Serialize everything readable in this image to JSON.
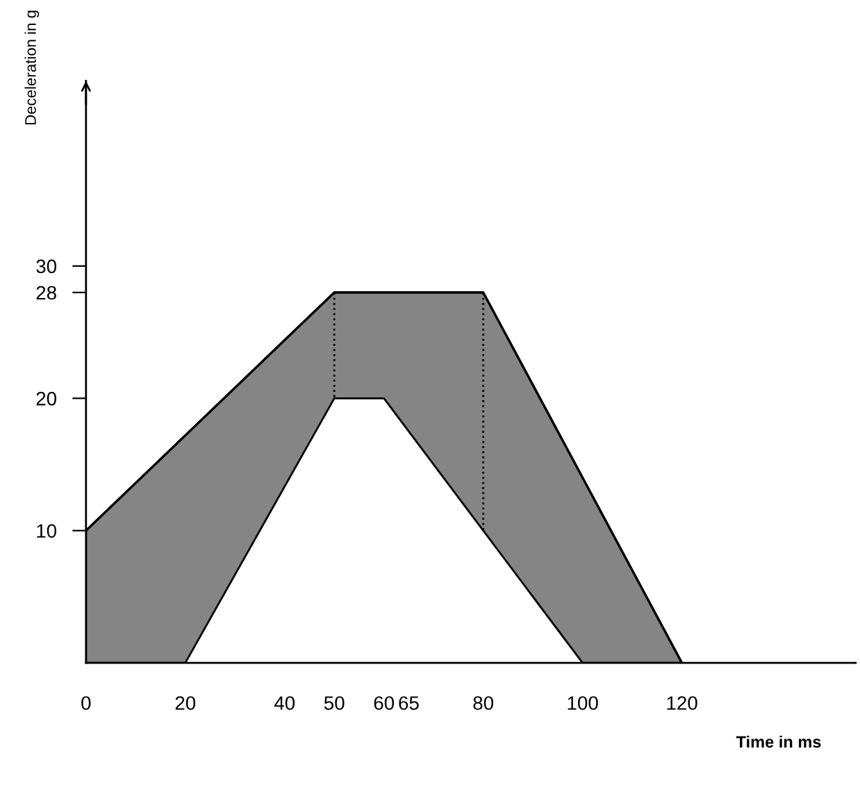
{
  "chart_data": {
    "type": "line",
    "xlabel": "Time in ms",
    "ylabel": "Deceleration in g",
    "series": [
      {
        "color": "#000000",
        "x": [
          0,
          20,
          50,
          60,
          80,
          100,
          120
        ],
        "values": [
          10,
          17.2,
          28,
          28,
          28,
          14,
          0
        ],
        "lower": [
          0,
          0,
          20,
          20,
          10,
          0,
          0
        ],
        "upper": [
          10,
          17.2,
          28,
          28,
          28,
          14,
          0
        ]
      }
    ],
    "xlim": [
      0,
      155
    ],
    "ylim": [
      0,
      44
    ],
    "xticks": [
      0,
      20,
      40,
      50,
      60,
      65,
      80,
      100,
      120
    ],
    "yticks": [
      10,
      20,
      28,
      30
    ],
    "ref_lines": [
      {
        "axis": "x",
        "value": 50,
        "color": "#000000",
        "line_style": "dotted"
      },
      {
        "axis": "x",
        "value": 80,
        "color": "#000000",
        "line_style": "dotted"
      }
    ]
  }
}
